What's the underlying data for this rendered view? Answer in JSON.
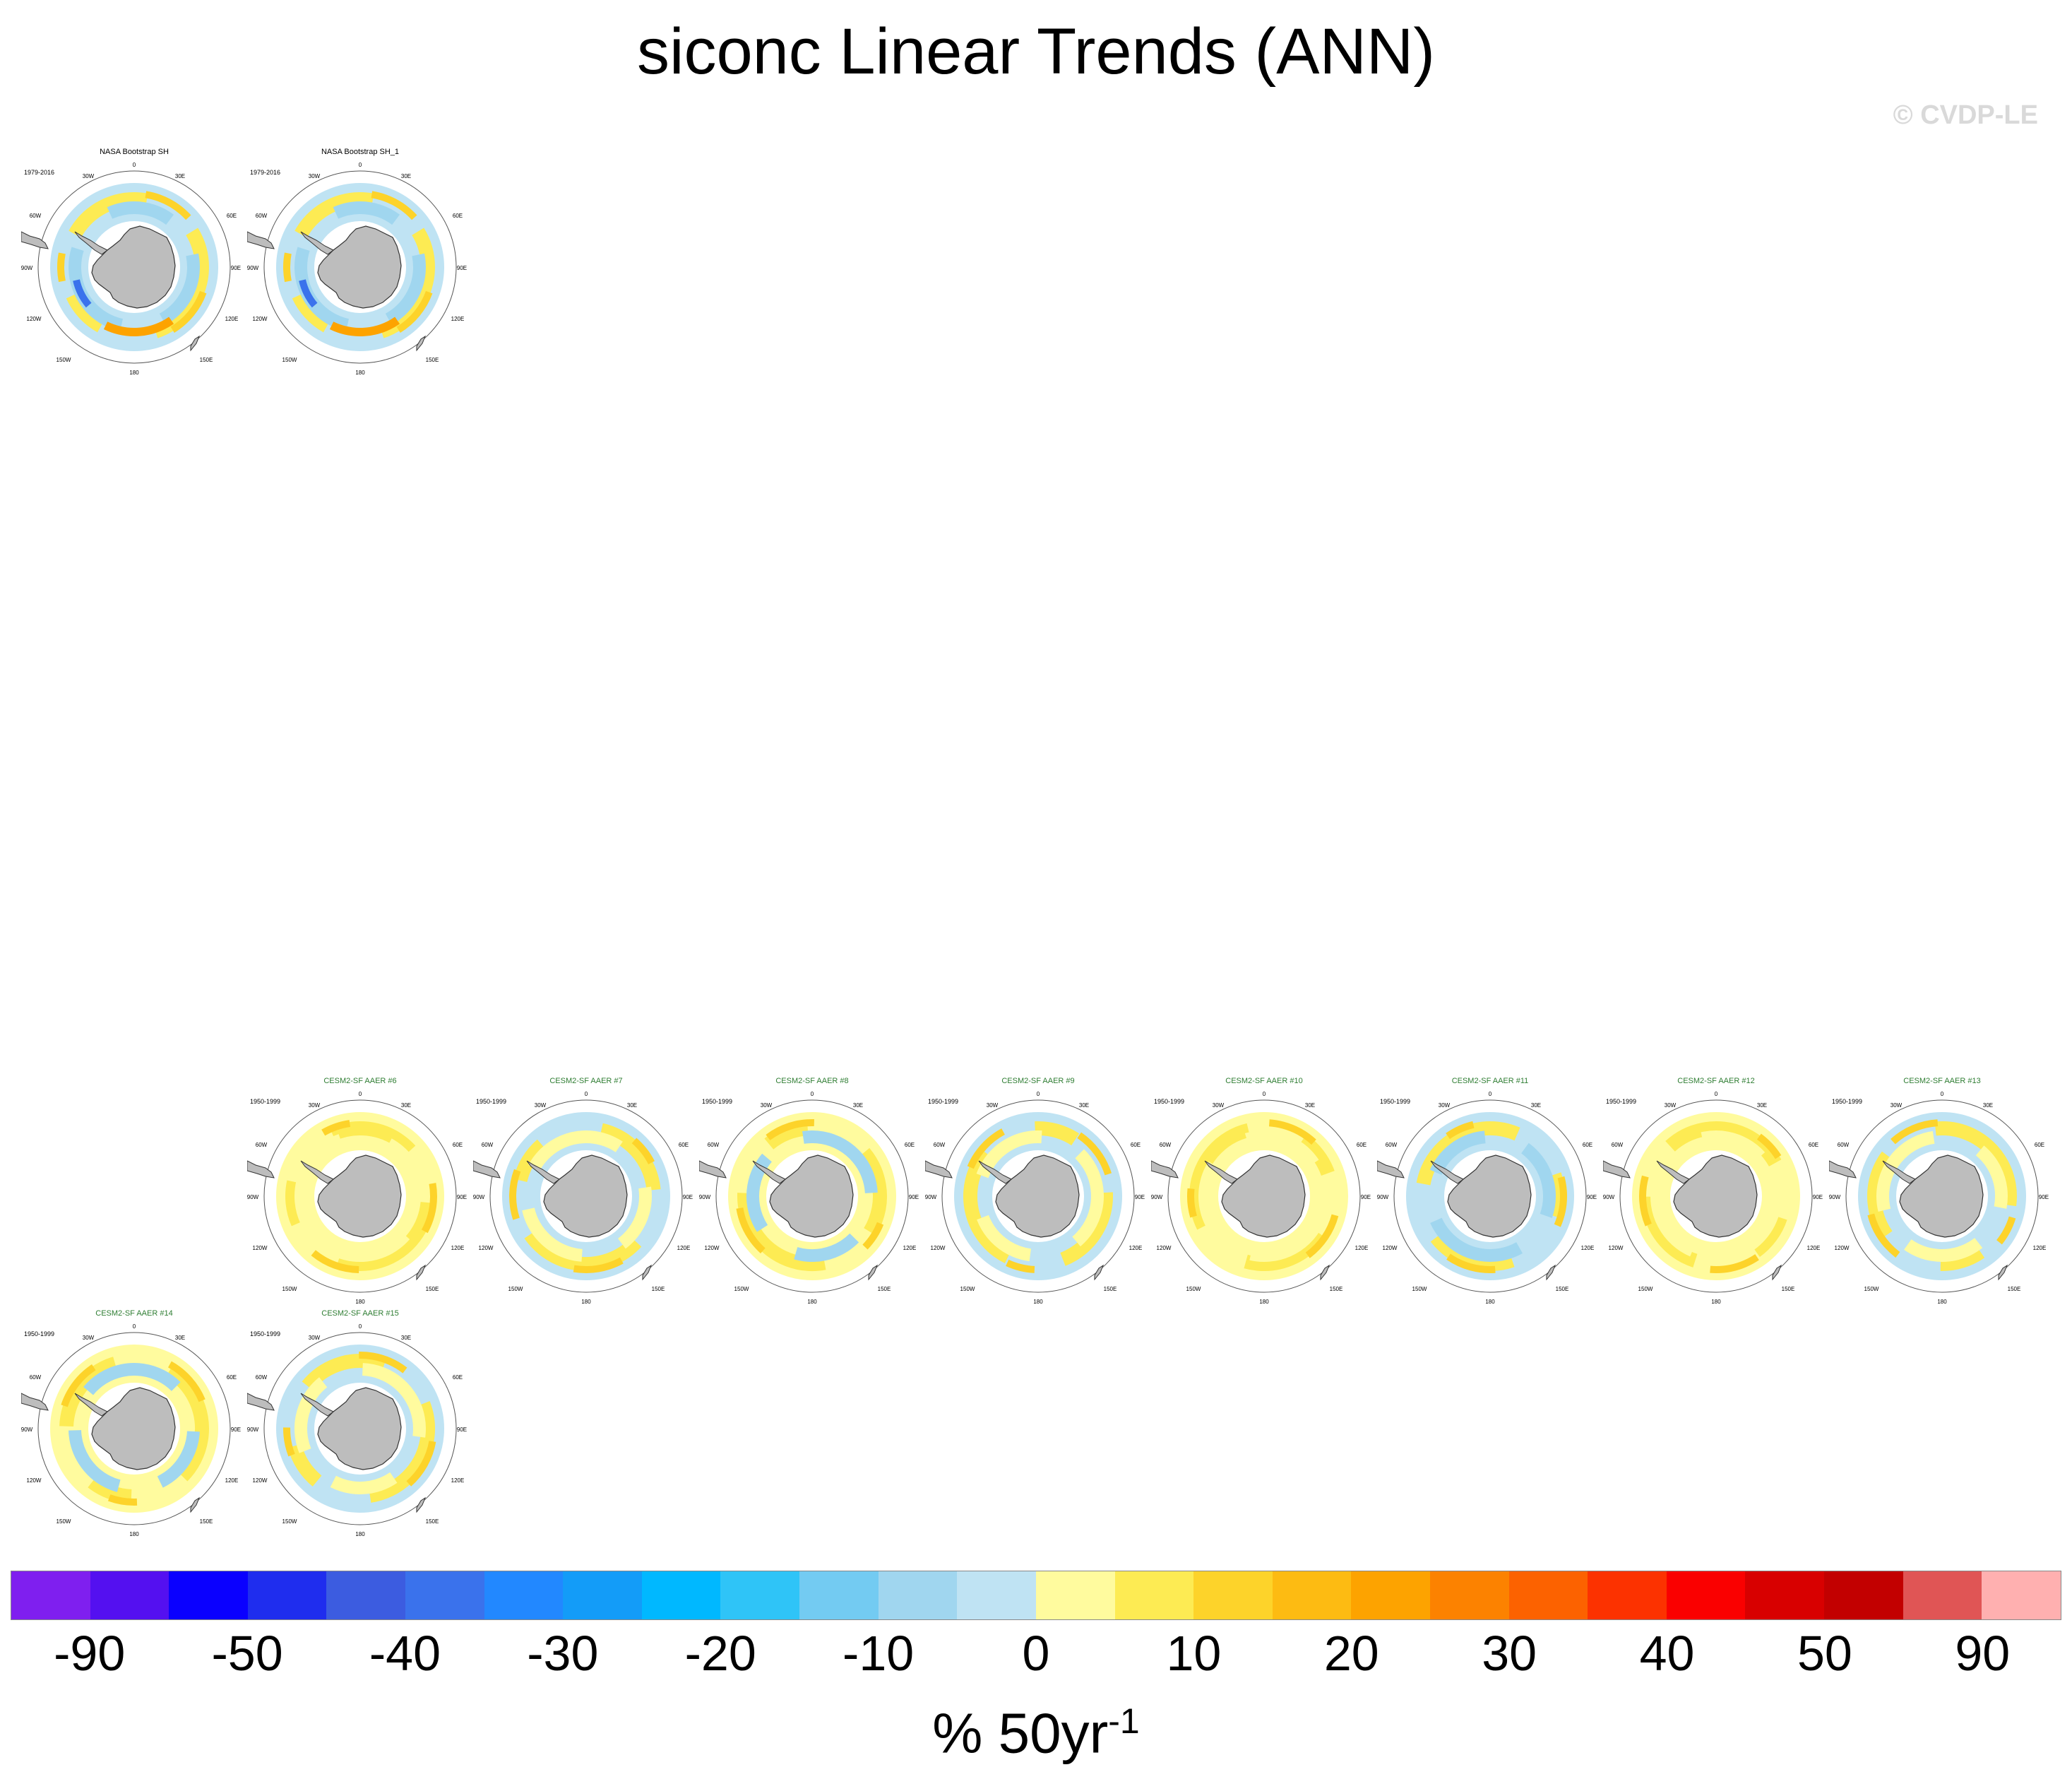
{
  "title": "siconc Linear Trends (ANN)",
  "watermark": "© CVDP-LE",
  "panels": [
    {
      "title": "NASA Bootstrap SH",
      "period": "1979-2016",
      "kind": "obs",
      "variant": 0
    },
    {
      "title": "NASA Bootstrap SH_1",
      "period": "1979-2016",
      "kind": "obs",
      "variant": 0
    },
    {
      "title": "CESM2-SF AAER #6",
      "period": "1950-1999",
      "kind": "model",
      "variant": 1
    },
    {
      "title": "CESM2-SF AAER #7",
      "period": "1950-1999",
      "kind": "model",
      "variant": 2
    },
    {
      "title": "CESM2-SF AAER #8",
      "period": "1950-1999",
      "kind": "model",
      "variant": 3
    },
    {
      "title": "CESM2-SF AAER #9",
      "period": "1950-1999",
      "kind": "model",
      "variant": 4
    },
    {
      "title": "CESM2-SF AAER #10",
      "period": "1950-1999",
      "kind": "model",
      "variant": 5
    },
    {
      "title": "CESM2-SF AAER #11",
      "period": "1950-1999",
      "kind": "model",
      "variant": 6
    },
    {
      "title": "CESM2-SF AAER #12",
      "period": "1950-1999",
      "kind": "model",
      "variant": 7
    },
    {
      "title": "CESM2-SF AAER #13",
      "period": "1950-1999",
      "kind": "model",
      "variant": 8
    },
    {
      "title": "CESM2-SF AAER #14",
      "period": "1950-1999",
      "kind": "model",
      "variant": 9
    },
    {
      "title": "CESM2-SF AAER #15",
      "period": "1950-1999",
      "kind": "model",
      "variant": 10
    }
  ],
  "map_labels": {
    "top": "0",
    "top_left": "30W",
    "top_right": "30E",
    "left_upper": "60W",
    "right_upper": "60E",
    "left": "90W",
    "right": "90E",
    "left_lower": "120W",
    "right_lower": "120E",
    "bottom_left": "150W",
    "bottom_right": "150E",
    "bottom": "180"
  },
  "colorbar": {
    "colors": [
      "#7f1fef",
      "#5410f0",
      "#0a00ff",
      "#1f2dee",
      "#3c5ce0",
      "#3a72ec",
      "#2288ff",
      "#139cf8",
      "#00b8ff",
      "#2fc4f7",
      "#73cbf2",
      "#a0d6ef",
      "#bfe3f3",
      "#fffb9e",
      "#fdeb53",
      "#fdd32a",
      "#fdbb12",
      "#fda300",
      "#fc8200",
      "#fc6200",
      "#fc3200",
      "#fa0000",
      "#d80000",
      "#c20000",
      "#e05555",
      "#ffb0b0"
    ],
    "labels": [
      "-90",
      "-50",
      "-40",
      "-30",
      "-20",
      "-10",
      "0",
      "10",
      "20",
      "30",
      "40",
      "50",
      "90"
    ],
    "units": "% 50yr",
    "units_exp": "-1"
  }
}
